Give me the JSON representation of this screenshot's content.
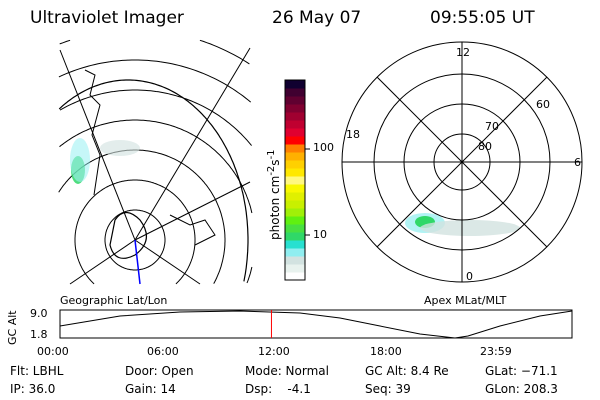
{
  "header": {
    "instrument": "Ultraviolet Imager",
    "date": "26 May 07",
    "time": "09:55:05 UT"
  },
  "colorbar": {
    "label": "photon cm",
    "exp1": "-2",
    "mid": "s",
    "exp2": "-1",
    "ticks": [
      "100",
      "10"
    ],
    "colors": [
      "#ffffff",
      "#e8f2ee",
      "#d2e2e0",
      "#90eef0",
      "#28e0d0",
      "#30d868",
      "#48e040",
      "#60f010",
      "#a0f008",
      "#c8f000",
      "#e0f000",
      "#f8f800",
      "#fff880",
      "#ffe800",
      "#ffd000",
      "#ffb000",
      "#ff8000",
      "#ff0000",
      "#e00030",
      "#c00030",
      "#a00030",
      "#800030",
      "#600030",
      "#400030",
      "#100030"
    ]
  },
  "polar": {
    "labels": [
      "12",
      "6",
      "0",
      "18"
    ],
    "lat_labels": [
      "80",
      "70",
      "60"
    ]
  },
  "map_labels": {
    "left": "Geographic Lat/Lon",
    "right": "Apex MLat/MLT"
  },
  "timeline": {
    "ylabel": "GC Alt",
    "yticks": [
      "9.0",
      "1.8"
    ],
    "xticks": [
      "00:00",
      "06:00",
      "12:00",
      "18:00",
      "23:59"
    ],
    "current_time_fraction": 0.413
  },
  "info": {
    "flt": "Flt: LBHL",
    "ip": "IP: 36.0",
    "door": "Door: Open",
    "gain": "Gain: 14",
    "mode": "Mode: Normal",
    "dsp": "Dsp:    -4.1",
    "gcalt": "GC Alt: 8.4 Re",
    "seq": "Seq: 39",
    "glat": "GLat: −71.1",
    "glon": "GLon: 208.3"
  }
}
